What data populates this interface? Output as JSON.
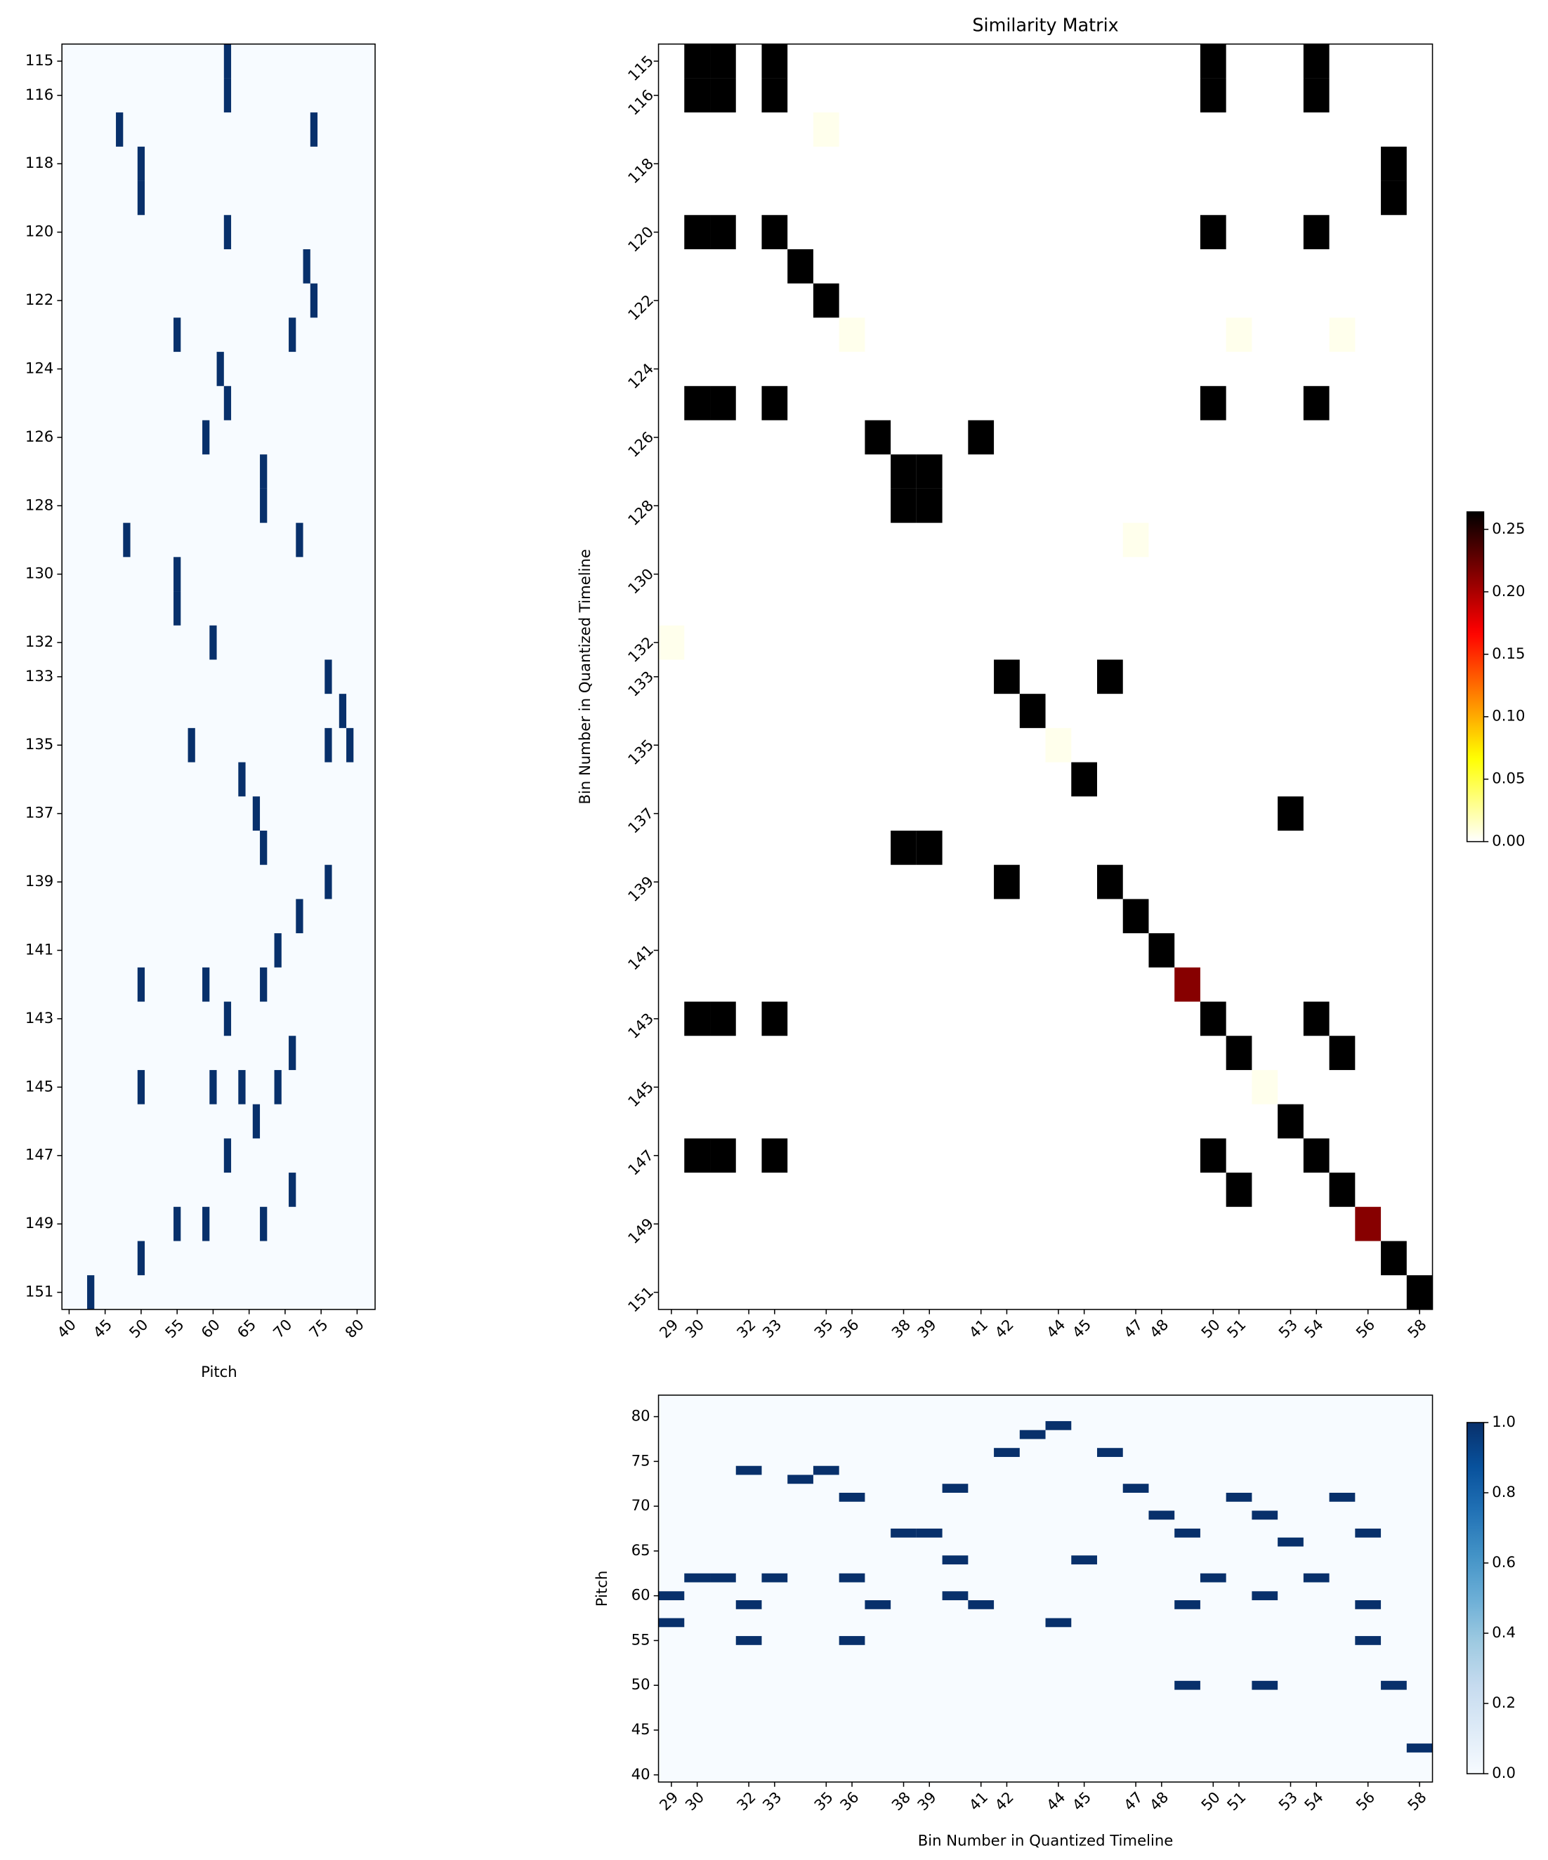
{
  "chart_data": [
    {
      "type": "piano_roll",
      "xlabel": "Pitch",
      "color": "#08306b",
      "background": "#f7fbff",
      "x": [
        62,
        62,
        47,
        74,
        50,
        50,
        62,
        73,
        74,
        55,
        71,
        61,
        62,
        59,
        67,
        67,
        48,
        72,
        55,
        55,
        60,
        76,
        78,
        57,
        76,
        79,
        64,
        66,
        67,
        76,
        72,
        69,
        50,
        59,
        67,
        62,
        71,
        50,
        60,
        64,
        69,
        66,
        62,
        71,
        55,
        59,
        67,
        50,
        43
      ],
      "y": [
        115,
        116,
        117,
        117,
        118,
        119,
        120,
        121,
        122,
        123,
        123,
        124,
        125,
        126,
        127,
        128,
        129,
        129,
        130,
        131,
        132,
        133,
        134,
        135,
        135,
        135,
        136,
        137,
        138,
        139,
        140,
        141,
        142,
        142,
        142,
        143,
        144,
        145,
        145,
        145,
        145,
        146,
        147,
        148,
        149,
        149,
        149,
        150,
        151
      ],
      "xlim": [
        39,
        82.5
      ],
      "xticks": [
        40,
        45,
        50,
        55,
        60,
        65,
        70,
        75,
        80
      ],
      "ylim": [
        151.5,
        114.5
      ],
      "yticks": [
        115,
        116,
        118,
        120,
        122,
        124,
        126,
        128,
        130,
        132,
        133,
        135,
        137,
        139,
        141,
        143,
        145,
        147,
        149,
        151
      ]
    },
    {
      "type": "heatmap",
      "title": "Similarity Matrix",
      "ylabel": "Bin Number in Quantized Timeline",
      "colormap": "hot_r",
      "x": [
        30,
        31,
        33,
        50,
        54,
        30,
        31,
        33,
        50,
        54,
        35,
        57,
        57,
        30,
        31,
        33,
        50,
        54,
        34,
        35,
        36,
        51,
        55,
        30,
        31,
        33,
        50,
        54,
        37,
        41,
        38,
        39,
        38,
        39,
        47,
        29,
        42,
        46,
        43,
        44,
        45,
        53,
        38,
        39,
        42,
        46,
        47,
        48,
        49,
        30,
        31,
        33,
        50,
        54,
        51,
        55,
        52,
        53,
        30,
        31,
        33,
        50,
        54,
        51,
        55,
        56,
        57,
        58
      ],
      "y": [
        115,
        115,
        115,
        115,
        115,
        116,
        116,
        116,
        116,
        116,
        117,
        118,
        119,
        120,
        120,
        120,
        120,
        120,
        121,
        122,
        123,
        123,
        123,
        125,
        125,
        125,
        125,
        125,
        126,
        126,
        127,
        127,
        128,
        128,
        129,
        132,
        133,
        133,
        134,
        135,
        136,
        137,
        138,
        138,
        139,
        139,
        140,
        141,
        142,
        143,
        143,
        143,
        143,
        143,
        144,
        144,
        145,
        146,
        147,
        147,
        147,
        147,
        147,
        148,
        148,
        149,
        150,
        151
      ],
      "values": [
        0.264,
        0.264,
        0.264,
        0.264,
        0.264,
        0.264,
        0.264,
        0.264,
        0.264,
        0.264,
        0.005,
        0.264,
        0.264,
        0.264,
        0.264,
        0.264,
        0.264,
        0.264,
        0.264,
        0.264,
        0.005,
        0.005,
        0.005,
        0.264,
        0.264,
        0.264,
        0.264,
        0.264,
        0.264,
        0.264,
        0.264,
        0.264,
        0.264,
        0.264,
        0.005,
        0.005,
        0.264,
        0.264,
        0.264,
        0.005,
        0.264,
        0.264,
        0.264,
        0.264,
        0.264,
        0.264,
        0.264,
        0.264,
        0.213,
        0.264,
        0.264,
        0.264,
        0.264,
        0.264,
        0.264,
        0.264,
        0.005,
        0.264,
        0.264,
        0.264,
        0.264,
        0.264,
        0.264,
        0.264,
        0.264,
        0.213,
        0.264,
        0.264
      ],
      "xlim": [
        28.5,
        58.5
      ],
      "xticks": [
        29,
        30,
        32,
        33,
        35,
        36,
        38,
        39,
        41,
        42,
        44,
        45,
        47,
        48,
        50,
        51,
        53,
        54,
        56,
        58
      ],
      "ylim": [
        151.5,
        114.5
      ],
      "yticks": [
        115,
        116,
        118,
        120,
        122,
        124,
        126,
        128,
        130,
        132,
        133,
        135,
        137,
        139,
        141,
        143,
        145,
        147,
        149,
        151
      ],
      "clim": [
        0,
        0.264
      ],
      "cticks": [
        {
          "value": 0,
          "label": "0.00"
        },
        {
          "value": 0.05,
          "label": "0.05"
        },
        {
          "value": 0.1,
          "label": "0.10"
        },
        {
          "value": 0.15,
          "label": "0.15"
        },
        {
          "value": 0.2,
          "label": "0.20"
        },
        {
          "value": 0.25,
          "label": "0.25"
        }
      ]
    },
    {
      "type": "piano_roll",
      "xlabel": "Bin Number in Quantized Timeline",
      "ylabel": "Pitch",
      "color": "#08306b",
      "background": "#f7fbff",
      "colormap": [
        "#f7fbff",
        "#deebf7",
        "#c6dbef",
        "#9ecae1",
        "#6baed6",
        "#4292c6",
        "#2171b5",
        "#08519c",
        "#08306b"
      ],
      "x": [
        29,
        29,
        30,
        31,
        32,
        32,
        32,
        33,
        34,
        35,
        36,
        36,
        36,
        37,
        38,
        39,
        40,
        40,
        40,
        41,
        42,
        43,
        44,
        44,
        45,
        46,
        47,
        48,
        49,
        49,
        49,
        50,
        51,
        52,
        52,
        52,
        53,
        54,
        55,
        56,
        56,
        56,
        57,
        58
      ],
      "y": [
        60,
        57,
        62,
        62,
        74,
        59,
        55,
        62,
        73,
        74,
        71,
        62,
        55,
        59,
        67,
        67,
        72,
        64,
        60,
        59,
        76,
        78,
        79,
        57,
        64,
        76,
        72,
        69,
        67,
        59,
        50,
        62,
        71,
        69,
        60,
        50,
        66,
        62,
        71,
        67,
        59,
        55,
        50,
        43
      ],
      "xlim": [
        28.5,
        58.5
      ],
      "xticks": [
        29,
        30,
        32,
        33,
        35,
        36,
        38,
        39,
        41,
        42,
        44,
        45,
        47,
        48,
        50,
        51,
        53,
        54,
        56,
        58
      ],
      "ylim": [
        39.2,
        82.4
      ],
      "yticks": [
        40,
        45,
        50,
        55,
        60,
        65,
        70,
        75,
        80
      ],
      "clim": [
        0,
        1
      ],
      "cticks": [
        {
          "value": 0,
          "label": "0.0"
        },
        {
          "value": 0.2,
          "label": "0.2"
        },
        {
          "value": 0.4,
          "label": "0.4"
        },
        {
          "value": 0.6,
          "label": "0.6"
        },
        {
          "value": 0.8,
          "label": "0.8"
        },
        {
          "value": 1,
          "label": "1.0"
        }
      ]
    }
  ]
}
